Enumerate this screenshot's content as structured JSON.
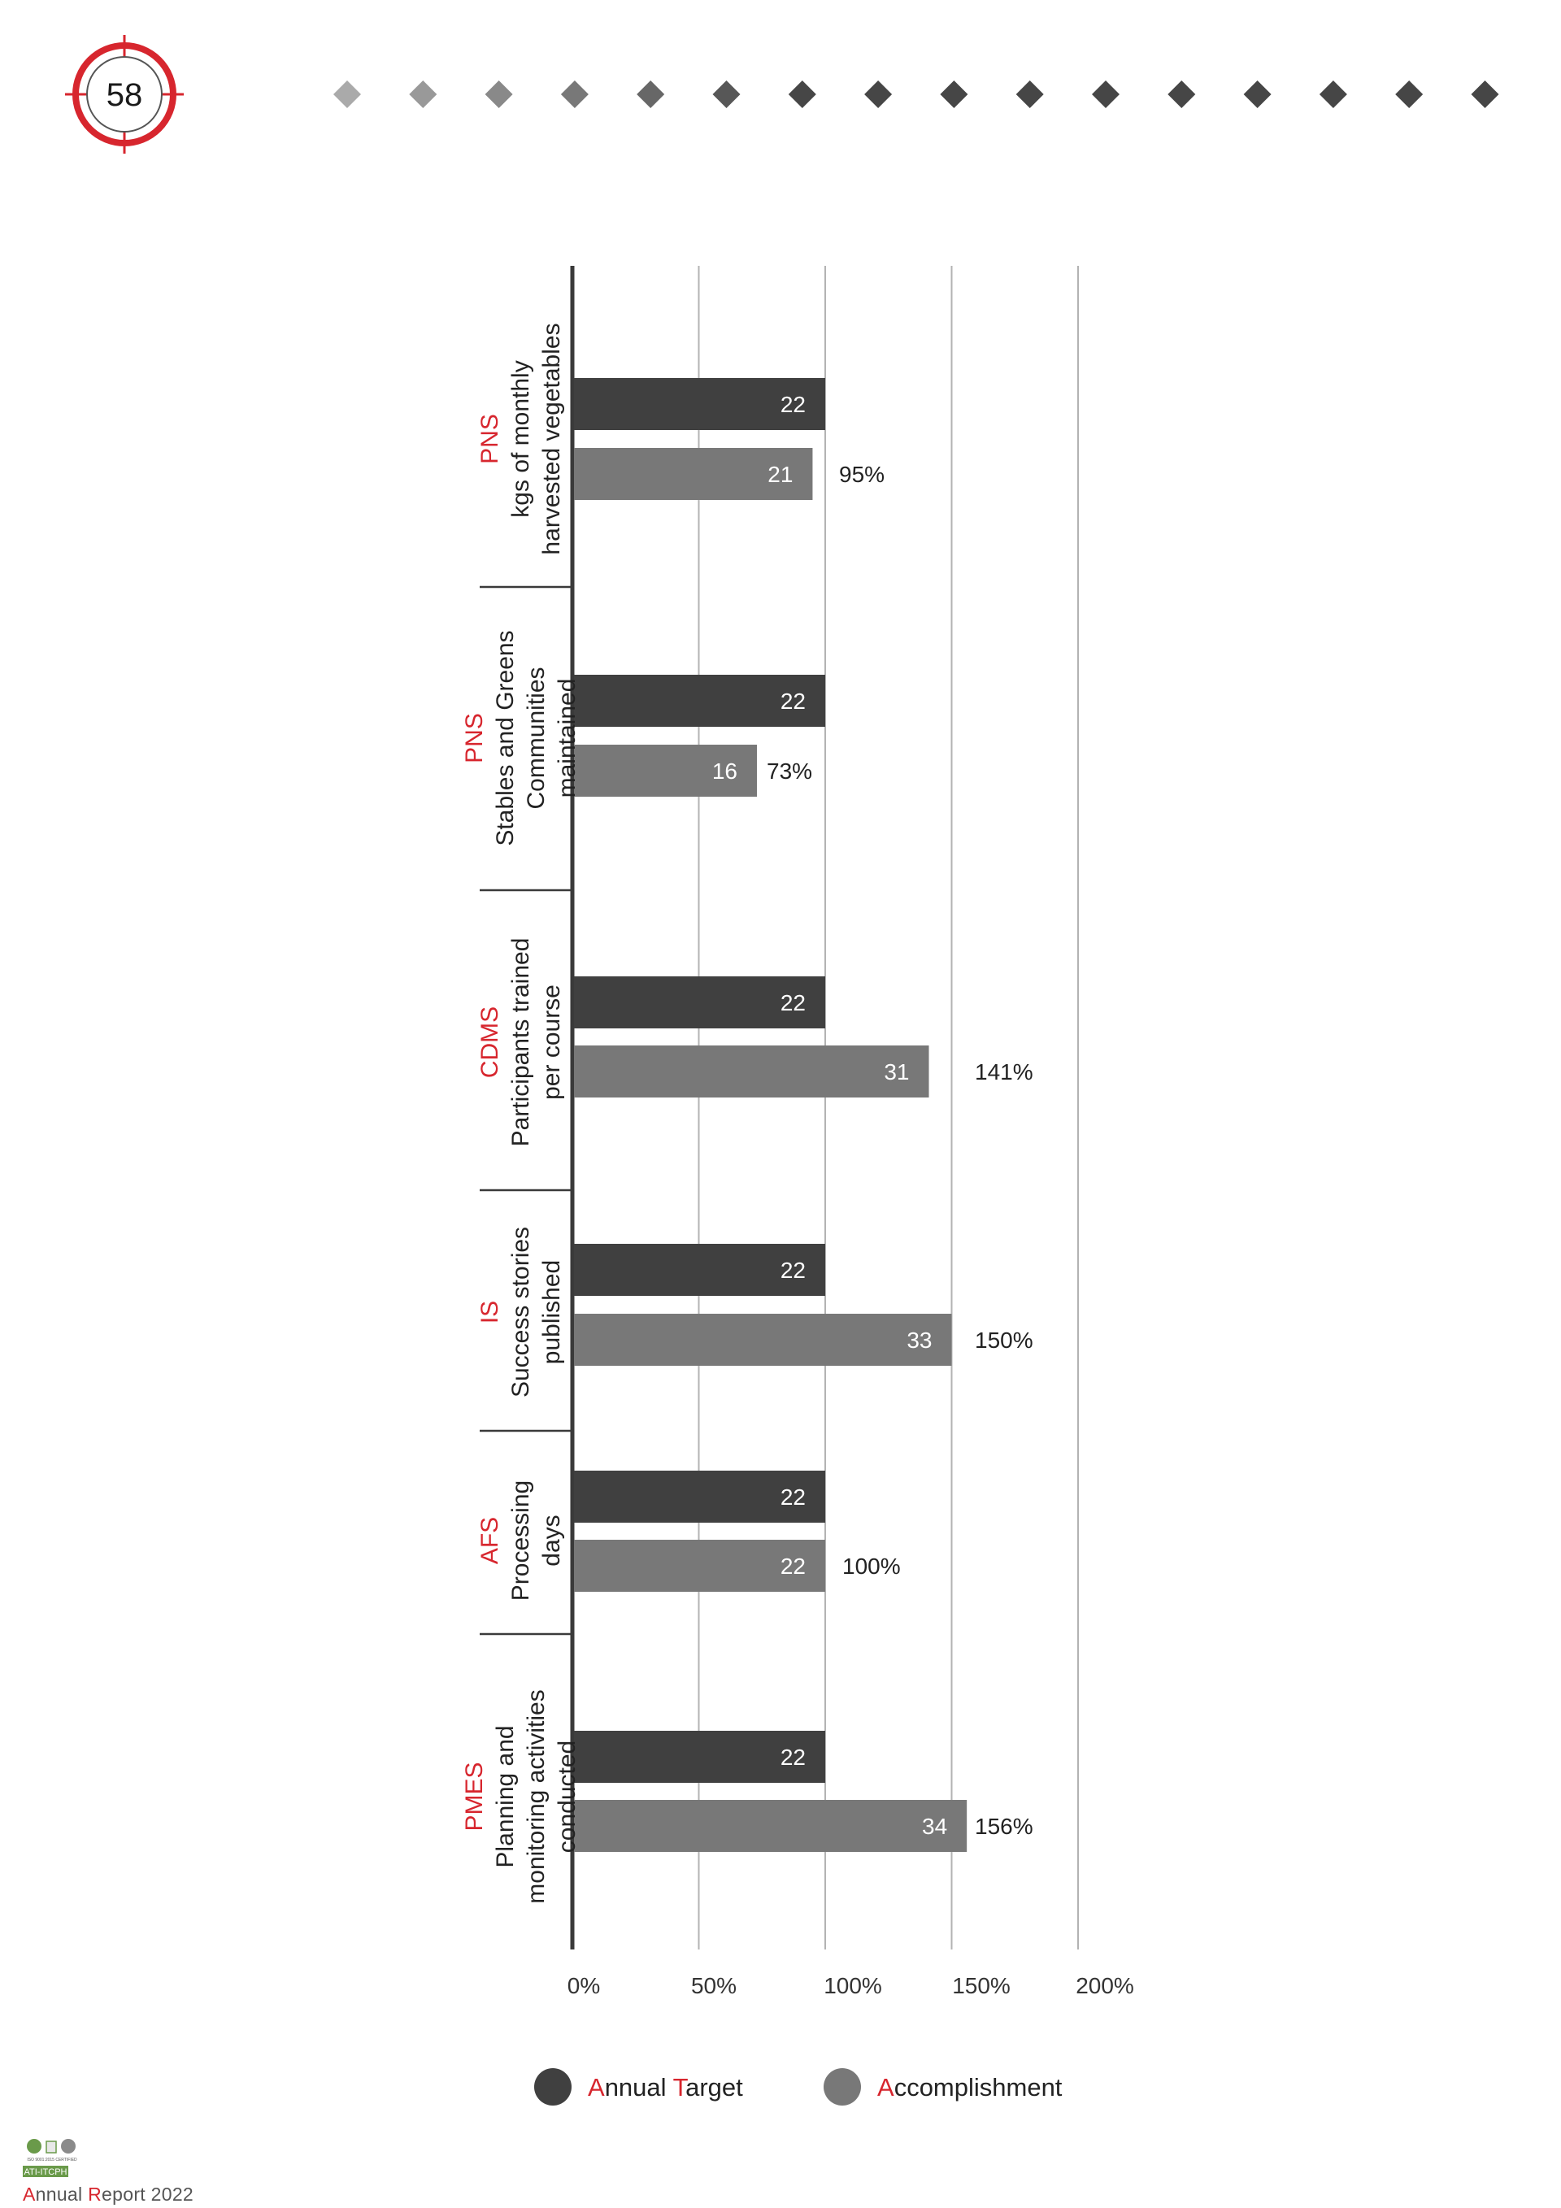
{
  "page": {
    "page_number": "58",
    "footer": {
      "logo_text": "ATI-ITCPH",
      "logo_cert_text": "ISO 9001:2015 CERTIFIED",
      "report_a": "A",
      "report_nnual": "nnual ",
      "report_r": "R",
      "report_rest": "eport 2022"
    }
  },
  "colors": {
    "accent": "#d7262e",
    "annual_target": "#404040",
    "accomplishment": "#787878",
    "gridline": "#b3b3b3",
    "axis": "#3a3a3a"
  },
  "legend": [
    {
      "initial": "A",
      "rest": "nnual ",
      "initial2": "T",
      "rest2": "arget",
      "color": "#404040"
    },
    {
      "initial": "A",
      "rest": "ccomplishment",
      "initial2": "",
      "rest2": "",
      "color": "#787878"
    }
  ],
  "chart_data": {
    "type": "bar",
    "orientation": "horizontal",
    "xlim": [
      0,
      200
    ],
    "x_ticks": [
      "0%",
      "50%",
      "100%",
      "150%",
      "200%"
    ],
    "grid": true,
    "legend_position": "bottom",
    "categories": [
      {
        "code": "PNS",
        "lines": [
          "kgs of monthly",
          "harvested vegetables"
        ]
      },
      {
        "code": "PNS",
        "lines": [
          "Stables and Greens",
          "Communities",
          "maintained"
        ]
      },
      {
        "code": "CDMS",
        "lines": [
          "Participants trained",
          "per course"
        ]
      },
      {
        "code": "IS",
        "lines": [
          "Success stories",
          "published"
        ]
      },
      {
        "code": "AFS",
        "lines": [
          "Processing",
          "days"
        ]
      },
      {
        "code": "PMES",
        "lines": [
          "Planning and",
          "monitoring activities",
          "conducted"
        ]
      }
    ],
    "series": [
      {
        "name": "Annual Target",
        "values": [
          22,
          22,
          22,
          22,
          22,
          22
        ],
        "percent": [
          100,
          100,
          100,
          100,
          100,
          100
        ]
      },
      {
        "name": "Accomplishment",
        "values": [
          21,
          16,
          31,
          33,
          22,
          34
        ],
        "percent": [
          95,
          73,
          141,
          150,
          100,
          156
        ],
        "percent_labels": [
          "95%",
          "73%",
          "141%",
          "150%",
          "100%",
          "156%"
        ]
      }
    ]
  }
}
